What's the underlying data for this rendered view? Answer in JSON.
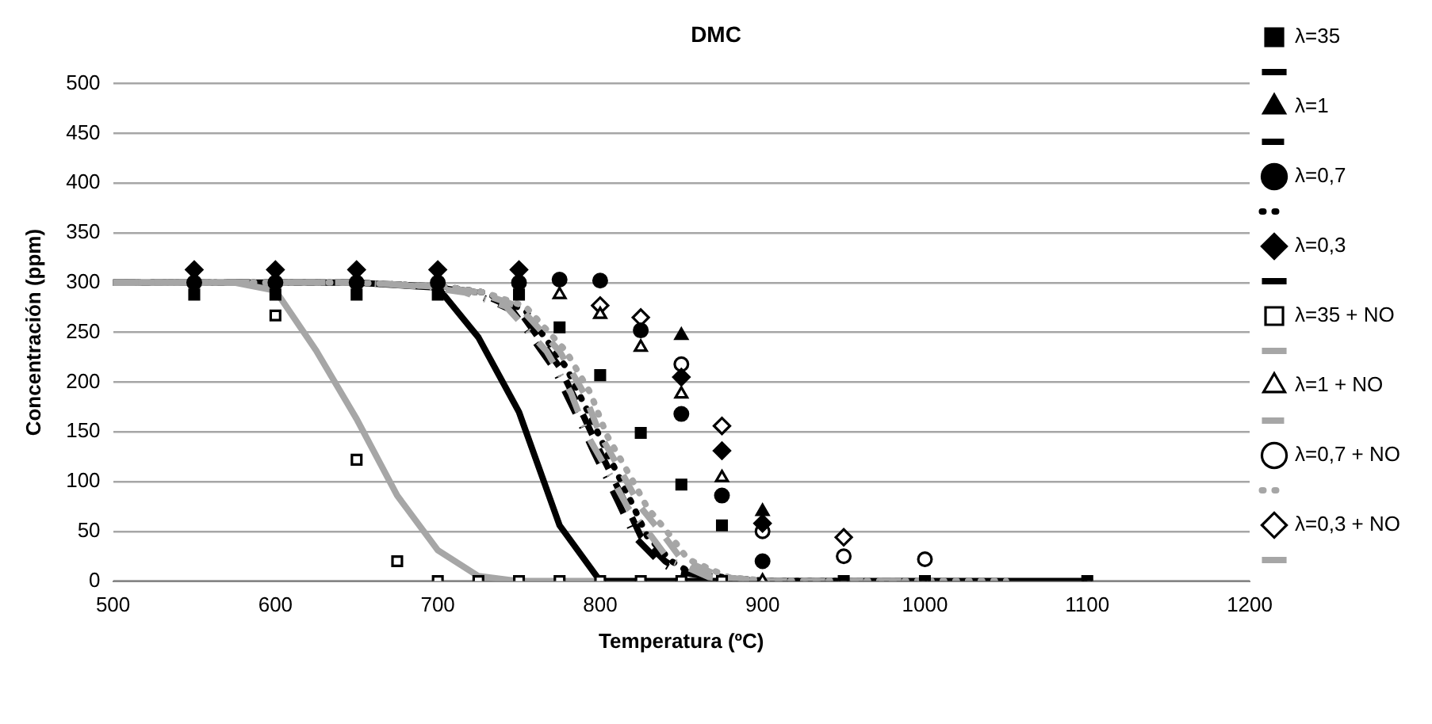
{
  "chart_data": {
    "type": "scatter",
    "title": "DMC",
    "xlabel": "Temperatura (ºC)",
    "ylabel": "Concentración (ppm)",
    "xlim": [
      500,
      1200
    ],
    "xticks": [
      500,
      600,
      700,
      800,
      900,
      1000,
      1100,
      1200
    ],
    "ylim": [
      0,
      500
    ],
    "yticks": [
      0,
      50,
      100,
      150,
      200,
      250,
      300,
      350,
      400,
      450,
      500
    ],
    "grid": "y",
    "legend": "right",
    "series": [
      {
        "name": "λ=35",
        "type": "scatter",
        "marker": "square",
        "color": "#000000",
        "x": [
          550,
          600,
          650,
          700,
          750,
          775,
          800,
          825,
          850,
          875,
          950,
          1000,
          1100
        ],
        "values": [
          288,
          288,
          288,
          288,
          288,
          255,
          207,
          149,
          97,
          56,
          0,
          0,
          0
        ]
      },
      {
        "type": "line",
        "line_style": "solid",
        "color": "#000000",
        "x": [
          500,
          650,
          700,
          725,
          750,
          775,
          800,
          1100
        ],
        "values": [
          300,
          300,
          295,
          245,
          170,
          56,
          0,
          0
        ]
      },
      {
        "name": "λ=1",
        "type": "scatter",
        "marker": "triangle",
        "color": "#000000",
        "x": [
          850,
          900
        ],
        "values": [
          247,
          70
        ]
      },
      {
        "type": "line",
        "line_style": "dashed",
        "color": "#000000",
        "x": [
          500,
          650,
          700,
          725,
          750,
          775,
          790,
          800,
          815,
          825,
          840,
          850,
          875,
          900
        ],
        "values": [
          300,
          300,
          296,
          290,
          272,
          215,
          165,
          130,
          80,
          45,
          20,
          10,
          3,
          0
        ]
      },
      {
        "name": "λ=0,7",
        "type": "scatter",
        "marker": "circle",
        "color": "#000000",
        "x": [
          550,
          600,
          650,
          700,
          750,
          775,
          800,
          825,
          850,
          875,
          900
        ],
        "values": [
          300,
          300,
          300,
          300,
          300,
          303,
          302,
          252,
          168,
          86,
          20
        ]
      },
      {
        "type": "line",
        "line_style": "dotted",
        "color": "#000000",
        "x": [
          500,
          650,
          704,
          729,
          754,
          779,
          794,
          804,
          819,
          829,
          844,
          854,
          879,
          904,
          950
        ],
        "values": [
          300,
          300,
          296,
          290,
          272,
          215,
          165,
          130,
          80,
          45,
          20,
          10,
          3,
          0,
          0
        ]
      },
      {
        "name": "λ=0,3",
        "type": "scatter",
        "marker": "diamond",
        "color": "#000000",
        "x": [
          550,
          600,
          650,
          700,
          750,
          850,
          875,
          900
        ],
        "values": [
          313,
          313,
          313,
          313,
          313,
          205,
          131,
          58
        ]
      },
      {
        "type": "line",
        "line_style": "dashdot",
        "color": "#000000",
        "x": [
          500,
          650,
          696,
          721,
          746,
          771,
          786,
          796,
          811,
          821,
          836,
          846,
          871,
          896
        ],
        "values": [
          300,
          300,
          296,
          290,
          272,
          215,
          165,
          130,
          80,
          45,
          20,
          10,
          3,
          0
        ]
      },
      {
        "name": "λ=35 + NO",
        "type": "scatter",
        "marker": "square",
        "color": "#ffffff",
        "x": [
          600,
          650,
          675,
          700,
          725,
          750,
          775,
          800,
          825,
          850,
          875
        ],
        "values": [
          267,
          122,
          20,
          0,
          0,
          0,
          0,
          0,
          0,
          0,
          0
        ]
      },
      {
        "type": "line",
        "line_style": "solid",
        "color": "#a6a6a6",
        "x": [
          500,
          575,
          600,
          625,
          650,
          675,
          700,
          725,
          750,
          800
        ],
        "values": [
          300,
          300,
          292,
          232,
          163,
          86,
          31,
          5,
          0,
          0
        ]
      },
      {
        "name": "λ=1 + NO",
        "type": "scatter",
        "marker": "triangle",
        "color": "#ffffff",
        "x": [
          775,
          800,
          825,
          850,
          875,
          900
        ],
        "values": [
          288,
          268,
          235,
          188,
          104,
          0
        ]
      },
      {
        "type": "line",
        "line_style": "dashed",
        "color": "#a6a6a6",
        "x": [
          500,
          650,
          700,
          725,
          750,
          775,
          790,
          800,
          815,
          825,
          840,
          850,
          875,
          900,
          1000
        ],
        "values": [
          300,
          300,
          296,
          290,
          276,
          231,
          189,
          147,
          104,
          74,
          44,
          22,
          4,
          0,
          0
        ]
      },
      {
        "name": "λ=0,7 + NO",
        "type": "scatter",
        "marker": "circle",
        "color": "#ffffff",
        "x": [
          850,
          900,
          950,
          1000
        ],
        "values": [
          218,
          50,
          25,
          22
        ]
      },
      {
        "type": "line",
        "line_style": "dotted",
        "color": "#a6a6a6",
        "x": [
          500,
          650,
          704,
          729,
          754,
          779,
          794,
          804,
          819,
          829,
          844,
          854,
          879,
          904,
          1050
        ],
        "values": [
          300,
          300,
          296,
          290,
          276,
          231,
          189,
          147,
          104,
          74,
          44,
          22,
          4,
          0,
          0
        ]
      },
      {
        "name": "λ=0,3 + NO",
        "type": "scatter",
        "marker": "diamond",
        "color": "#ffffff",
        "x": [
          800,
          825,
          875,
          950
        ],
        "values": [
          277,
          265,
          156,
          44
        ]
      },
      {
        "type": "line",
        "line_style": "dashdot",
        "color": "#a6a6a6",
        "x": [
          500,
          650,
          692,
          717,
          742,
          767,
          782,
          792,
          807,
          817,
          832,
          842,
          867,
          892
        ],
        "values": [
          300,
          300,
          296,
          290,
          276,
          231,
          189,
          147,
          104,
          74,
          44,
          22,
          4,
          0
        ]
      }
    ]
  }
}
